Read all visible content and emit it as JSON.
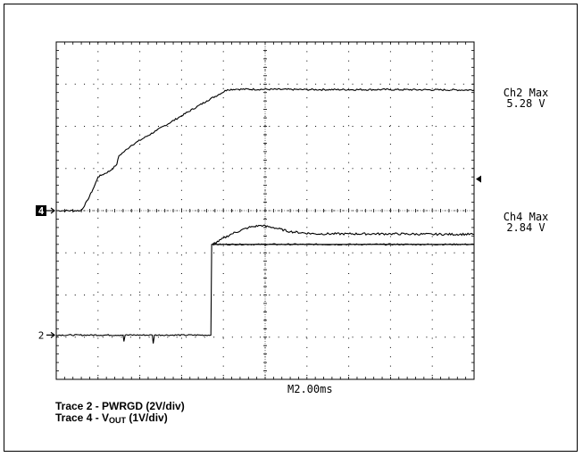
{
  "chart_data": {
    "type": "line",
    "title": "",
    "grid": true,
    "timebase_label": "M2.00ms",
    "x_unit": "div",
    "xlim": [
      0,
      10
    ],
    "ylim": [
      0,
      8
    ],
    "series": [
      {
        "channel": "2",
        "name": "Trace 2 - PWRGD (2V/div)",
        "color": "#000000",
        "x": [
          0,
          1.6,
          1.62,
          1.65,
          2.3,
          2.32,
          2.35,
          3.7,
          3.72,
          3.74,
          10
        ],
        "y": [
          -2.95,
          -2.95,
          -3.1,
          -2.95,
          -2.95,
          -3.15,
          -2.95,
          -2.95,
          -0.8,
          -0.8,
          -0.8
        ],
        "extra_points": {
          "x": [
            3.74,
            4.2,
            4.6,
            4.9,
            5.2,
            5.6,
            6.2,
            7.0,
            8.0,
            9.0,
            10
          ],
          "y": [
            -0.8,
            -0.55,
            -0.4,
            -0.35,
            -0.4,
            -0.5,
            -0.55,
            -0.55,
            -0.55,
            -0.56,
            -0.56
          ]
        }
      },
      {
        "channel": "4",
        "name": "Trace 4 - V_OUT (1V/div)",
        "color": "#000000",
        "x": [
          0,
          0.6,
          0.75,
          0.9,
          1.0,
          1.1,
          1.3,
          1.45,
          1.5,
          1.6,
          1.8,
          2.4,
          3.0,
          3.6,
          4.1,
          4.3,
          6.0,
          8.0,
          10
        ],
        "y": [
          0,
          0,
          0.25,
          0.55,
          0.8,
          0.85,
          0.95,
          1.1,
          1.3,
          1.38,
          1.55,
          1.9,
          2.25,
          2.6,
          2.87,
          2.88,
          2.87,
          2.87,
          2.86
        ]
      }
    ],
    "ground_markers": [
      {
        "label": "4",
        "level": 0
      },
      {
        "label": "2",
        "level": -2.95
      }
    ],
    "trigger_marker": {
      "level": 0.75
    },
    "measurements": [
      {
        "label": "Ch2 Max",
        "value": "5.28 V"
      },
      {
        "label": "Ch4 Max",
        "value": "2.84 V"
      }
    ],
    "captions": {
      "trace2": "Trace 2 - PWRGD (2V/div)",
      "trace4_prefix": "Trace 4 - V",
      "trace4_sub": "OUT",
      "trace4_suffix": " (1V/div)"
    }
  }
}
